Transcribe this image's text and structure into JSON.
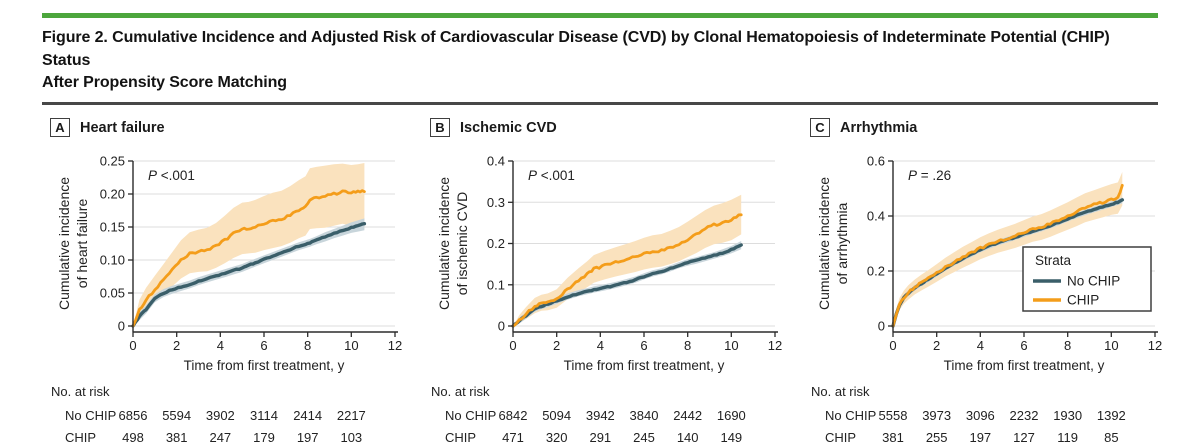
{
  "figure": {
    "title_line1": "Figure 2. Cumulative Incidence and Adjusted Risk of Cardiovascular Disease (CVD) by Clonal Hematopoiesis of Indeterminate Potential (CHIP) Status",
    "title_line2": "After Propensity Score Matching"
  },
  "colors": {
    "accent_green": "#4ca63c",
    "no_chip": "#3a5e69",
    "no_chip_band": "#c8d5db",
    "chip": "#f49d1a",
    "chip_band": "#fae2be",
    "grid": "#dddddd",
    "axis": "#2b2b2b",
    "text": "#222222"
  },
  "legend": {
    "title": "Strata",
    "items": [
      {
        "label": "No CHIP",
        "color_key": "no_chip"
      },
      {
        "label": "CHIP",
        "color_key": "chip"
      }
    ]
  },
  "x_axis": {
    "label": "Time from first treatment, y",
    "range": [
      0,
      12
    ],
    "ticks": [
      0,
      2,
      4,
      6,
      8,
      10,
      12
    ],
    "tick_labels": [
      "0",
      "2",
      "4",
      "6",
      "8",
      "10",
      "12"
    ]
  },
  "at_risk_header": "No. at risk",
  "chart_data": [
    {
      "type": "line",
      "panel_letter": "A",
      "title": "Heart failure",
      "ylabel_line1": "Cumulative incidence",
      "ylabel_line2": "of heart failure",
      "p": {
        "italic": "P",
        "rest": " <.001"
      },
      "ylim": [
        0,
        0.25
      ],
      "yticks": [
        0,
        0.05,
        0.1,
        0.15,
        0.2,
        0.25
      ],
      "ytick_labels": [
        "0",
        "0.05",
        "0.10",
        "0.15",
        "0.20",
        "0.25"
      ],
      "show_legend": false,
      "series": [
        {
          "name": "No CHIP",
          "x": [
            0,
            0.3,
            0.6,
            1,
            1.4,
            1.8,
            2.2,
            2.6,
            3,
            3.4,
            3.8,
            4.2,
            4.6,
            5,
            5.3,
            5.6,
            6,
            6.4,
            6.8,
            7.2,
            7.6,
            7.9,
            8.1,
            8.4,
            8.8,
            9.2,
            9.6,
            10,
            10.3,
            10.6
          ],
          "y": [
            0,
            0.015,
            0.025,
            0.042,
            0.05,
            0.055,
            0.059,
            0.063,
            0.068,
            0.072,
            0.076,
            0.08,
            0.084,
            0.088,
            0.092,
            0.096,
            0.101,
            0.106,
            0.111,
            0.116,
            0.121,
            0.124,
            0.126,
            0.13,
            0.135,
            0.14,
            0.145,
            0.149,
            0.152,
            0.155
          ],
          "lo": [
            0,
            0.009,
            0.019,
            0.036,
            0.044,
            0.049,
            0.053,
            0.057,
            0.062,
            0.066,
            0.07,
            0.074,
            0.078,
            0.082,
            0.086,
            0.09,
            0.095,
            0.1,
            0.105,
            0.11,
            0.115,
            0.118,
            0.12,
            0.124,
            0.128,
            0.133,
            0.137,
            0.141,
            0.143,
            0.145
          ],
          "hi": [
            0,
            0.021,
            0.031,
            0.048,
            0.056,
            0.061,
            0.065,
            0.069,
            0.074,
            0.078,
            0.082,
            0.086,
            0.09,
            0.094,
            0.098,
            0.102,
            0.107,
            0.112,
            0.117,
            0.122,
            0.127,
            0.13,
            0.132,
            0.136,
            0.142,
            0.147,
            0.152,
            0.157,
            0.16,
            0.163
          ]
        },
        {
          "name": "CHIP",
          "x": [
            0,
            0.3,
            0.6,
            1,
            1.4,
            1.8,
            2.2,
            2.6,
            3,
            3.4,
            3.8,
            4.2,
            4.6,
            5,
            5.3,
            5.6,
            6,
            6.4,
            6.8,
            7.2,
            7.6,
            7.9,
            8.1,
            8.4,
            8.8,
            9.2,
            9.6,
            10,
            10.3,
            10.6
          ],
          "y": [
            0,
            0.025,
            0.04,
            0.055,
            0.07,
            0.085,
            0.1,
            0.11,
            0.113,
            0.115,
            0.121,
            0.13,
            0.14,
            0.147,
            0.148,
            0.15,
            0.155,
            0.159,
            0.162,
            0.168,
            0.176,
            0.181,
            0.192,
            0.194,
            0.196,
            0.2,
            0.204,
            0.202,
            0.203,
            0.204
          ],
          "lo": [
            0,
            0.013,
            0.024,
            0.036,
            0.048,
            0.06,
            0.072,
            0.08,
            0.082,
            0.083,
            0.088,
            0.095,
            0.103,
            0.109,
            0.11,
            0.111,
            0.115,
            0.118,
            0.121,
            0.126,
            0.133,
            0.137,
            0.147,
            0.148,
            0.149,
            0.152,
            0.155,
            0.152,
            0.152,
            0.147
          ],
          "hi": [
            0,
            0.04,
            0.058,
            0.076,
            0.094,
            0.112,
            0.13,
            0.142,
            0.146,
            0.149,
            0.156,
            0.167,
            0.179,
            0.187,
            0.188,
            0.191,
            0.197,
            0.202,
            0.205,
            0.212,
            0.221,
            0.227,
            0.239,
            0.241,
            0.243,
            0.245,
            0.246,
            0.244,
            0.245,
            0.247
          ]
        }
      ],
      "at_risk": {
        "ticks": [
          0,
          2,
          4,
          6,
          8,
          10
        ],
        "rows": [
          {
            "label": "No CHIP",
            "values": [
              "6856",
              "5594",
              "3902",
              "3114",
              "2414",
              "2217"
            ]
          },
          {
            "label": "CHIP",
            "values": [
              "498",
              "381",
              "247",
              "179",
              "197",
              "103"
            ]
          }
        ]
      }
    },
    {
      "type": "line",
      "panel_letter": "B",
      "title": "Ischemic CVD",
      "ylabel_line1": "Cumulative incidence",
      "ylabel_line2": "of ischemic CVD",
      "p": {
        "italic": "P",
        "rest": " <.001"
      },
      "ylim": [
        0,
        0.4
      ],
      "yticks": [
        0,
        0.1,
        0.2,
        0.3,
        0.4
      ],
      "ytick_labels": [
        "0",
        "0.1",
        "0.2",
        "0.3",
        "0.4"
      ],
      "show_legend": false,
      "series": [
        {
          "name": "No CHIP",
          "x": [
            0,
            0.3,
            0.6,
            1,
            1.3,
            1.6,
            2,
            2.5,
            3,
            3.4,
            3.7,
            4.2,
            4.7,
            5.2,
            5.6,
            6,
            6.4,
            6.8,
            7.2,
            7.6,
            8,
            8.4,
            8.8,
            9.2,
            9.6,
            10,
            10.45
          ],
          "y": [
            0,
            0.013,
            0.025,
            0.042,
            0.048,
            0.053,
            0.061,
            0.071,
            0.079,
            0.084,
            0.088,
            0.093,
            0.099,
            0.106,
            0.112,
            0.12,
            0.127,
            0.132,
            0.139,
            0.147,
            0.154,
            0.159,
            0.165,
            0.171,
            0.177,
            0.185,
            0.196
          ],
          "lo": [
            0,
            0.006,
            0.018,
            0.035,
            0.041,
            0.046,
            0.054,
            0.064,
            0.072,
            0.077,
            0.081,
            0.086,
            0.092,
            0.099,
            0.105,
            0.113,
            0.12,
            0.125,
            0.132,
            0.14,
            0.146,
            0.151,
            0.157,
            0.163,
            0.169,
            0.176,
            0.186
          ],
          "hi": [
            0,
            0.021,
            0.033,
            0.05,
            0.056,
            0.061,
            0.069,
            0.079,
            0.087,
            0.092,
            0.096,
            0.101,
            0.107,
            0.114,
            0.12,
            0.128,
            0.135,
            0.14,
            0.147,
            0.155,
            0.162,
            0.167,
            0.173,
            0.179,
            0.186,
            0.194,
            0.206
          ]
        },
        {
          "name": "CHIP",
          "x": [
            0,
            0.3,
            0.6,
            1,
            1.3,
            1.6,
            2,
            2.5,
            3,
            3.4,
            3.7,
            4.2,
            4.7,
            5.2,
            5.6,
            6,
            6.4,
            6.8,
            7.2,
            7.6,
            8,
            8.4,
            8.8,
            9.2,
            9.6,
            10,
            10.45
          ],
          "y": [
            0,
            0.015,
            0.03,
            0.048,
            0.055,
            0.057,
            0.065,
            0.09,
            0.11,
            0.125,
            0.138,
            0.147,
            0.155,
            0.162,
            0.168,
            0.175,
            0.18,
            0.183,
            0.19,
            0.198,
            0.21,
            0.222,
            0.235,
            0.245,
            0.25,
            0.257,
            0.27
          ],
          "lo": [
            0,
            0.007,
            0.017,
            0.031,
            0.037,
            0.038,
            0.044,
            0.065,
            0.082,
            0.094,
            0.105,
            0.113,
            0.12,
            0.126,
            0.131,
            0.137,
            0.141,
            0.144,
            0.15,
            0.157,
            0.167,
            0.177,
            0.189,
            0.198,
            0.202,
            0.208,
            0.222
          ],
          "hi": [
            0,
            0.027,
            0.046,
            0.068,
            0.076,
            0.079,
            0.089,
            0.117,
            0.14,
            0.157,
            0.172,
            0.182,
            0.191,
            0.199,
            0.206,
            0.214,
            0.22,
            0.223,
            0.231,
            0.24,
            0.253,
            0.267,
            0.281,
            0.292,
            0.298,
            0.306,
            0.318
          ]
        }
      ],
      "at_risk": {
        "ticks": [
          0,
          2,
          4,
          6,
          8,
          10
        ],
        "rows": [
          {
            "label": "No CHIP",
            "values": [
              "6842",
              "5094",
              "3942",
              "3840",
              "2442",
              "1690"
            ]
          },
          {
            "label": "CHIP",
            "values": [
              "471",
              "320",
              "291",
              "245",
              "140",
              "149"
            ]
          }
        ]
      }
    },
    {
      "type": "line",
      "panel_letter": "C",
      "title": "Arrhythmia",
      "ylabel_line1": "Cumulative incidence",
      "ylabel_line2": "of arrhythmia",
      "p": {
        "italic": "P",
        "rest": " = .26"
      },
      "ylim": [
        0,
        0.6
      ],
      "yticks": [
        0,
        0.2,
        0.4,
        0.6
      ],
      "ytick_labels": [
        "0",
        "0.2",
        "0.4",
        "0.6"
      ],
      "show_legend": true,
      "series": [
        {
          "name": "No CHIP",
          "x": [
            0,
            0.15,
            0.3,
            0.5,
            0.7,
            1,
            1.3,
            1.6,
            2,
            2.4,
            2.8,
            3.2,
            3.6,
            4,
            4.4,
            4.8,
            5.2,
            5.6,
            6,
            6.4,
            6.8,
            7.2,
            7.6,
            8,
            8.4,
            8.8,
            9.2,
            9.6,
            10,
            10.3,
            10.5
          ],
          "y": [
            0,
            0.043,
            0.077,
            0.102,
            0.119,
            0.139,
            0.155,
            0.169,
            0.19,
            0.211,
            0.229,
            0.246,
            0.262,
            0.278,
            0.291,
            0.303,
            0.313,
            0.323,
            0.334,
            0.345,
            0.354,
            0.365,
            0.377,
            0.39,
            0.402,
            0.413,
            0.423,
            0.433,
            0.443,
            0.45,
            0.458
          ],
          "lo": [
            0,
            0.033,
            0.067,
            0.092,
            0.109,
            0.129,
            0.145,
            0.159,
            0.18,
            0.201,
            0.219,
            0.236,
            0.252,
            0.268,
            0.281,
            0.293,
            0.303,
            0.313,
            0.324,
            0.335,
            0.344,
            0.355,
            0.367,
            0.38,
            0.392,
            0.403,
            0.413,
            0.423,
            0.433,
            0.44,
            0.446
          ],
          "hi": [
            0,
            0.053,
            0.087,
            0.112,
            0.129,
            0.149,
            0.165,
            0.179,
            0.2,
            0.221,
            0.239,
            0.256,
            0.272,
            0.288,
            0.301,
            0.313,
            0.323,
            0.333,
            0.344,
            0.355,
            0.364,
            0.375,
            0.387,
            0.4,
            0.412,
            0.423,
            0.433,
            0.443,
            0.453,
            0.46,
            0.468
          ]
        },
        {
          "name": "CHIP",
          "x": [
            0,
            0.15,
            0.3,
            0.5,
            0.7,
            1,
            1.3,
            1.6,
            2,
            2.4,
            2.8,
            3.2,
            3.6,
            4,
            4.4,
            4.8,
            5.2,
            5.6,
            6,
            6.4,
            6.8,
            7.2,
            7.6,
            8,
            8.4,
            8.8,
            9.2,
            9.6,
            10,
            10.3,
            10.5
          ],
          "y": [
            0,
            0.045,
            0.08,
            0.105,
            0.122,
            0.142,
            0.158,
            0.172,
            0.193,
            0.214,
            0.232,
            0.25,
            0.266,
            0.283,
            0.296,
            0.308,
            0.318,
            0.328,
            0.34,
            0.352,
            0.36,
            0.372,
            0.386,
            0.4,
            0.415,
            0.43,
            0.44,
            0.45,
            0.46,
            0.465,
            0.508
          ],
          "lo": [
            0,
            0.028,
            0.058,
            0.081,
            0.096,
            0.115,
            0.129,
            0.142,
            0.161,
            0.18,
            0.196,
            0.212,
            0.227,
            0.243,
            0.255,
            0.266,
            0.275,
            0.284,
            0.295,
            0.306,
            0.313,
            0.324,
            0.337,
            0.35,
            0.363,
            0.377,
            0.386,
            0.395,
            0.404,
            0.408,
            0.438
          ],
          "hi": [
            0,
            0.062,
            0.102,
            0.129,
            0.148,
            0.169,
            0.187,
            0.202,
            0.225,
            0.248,
            0.268,
            0.288,
            0.305,
            0.323,
            0.337,
            0.35,
            0.361,
            0.372,
            0.385,
            0.398,
            0.407,
            0.42,
            0.435,
            0.45,
            0.467,
            0.483,
            0.494,
            0.505,
            0.516,
            0.522,
            0.56
          ]
        }
      ],
      "at_risk": {
        "ticks": [
          0,
          2,
          4,
          6,
          8,
          10
        ],
        "rows": [
          {
            "label": "No CHIP",
            "values": [
              "5558",
              "3973",
              "3096",
              "2232",
              "1930",
              "1392"
            ]
          },
          {
            "label": "CHIP",
            "values": [
              "381",
              "255",
              "197",
              "127",
              "119",
              "85"
            ]
          }
        ]
      }
    }
  ]
}
